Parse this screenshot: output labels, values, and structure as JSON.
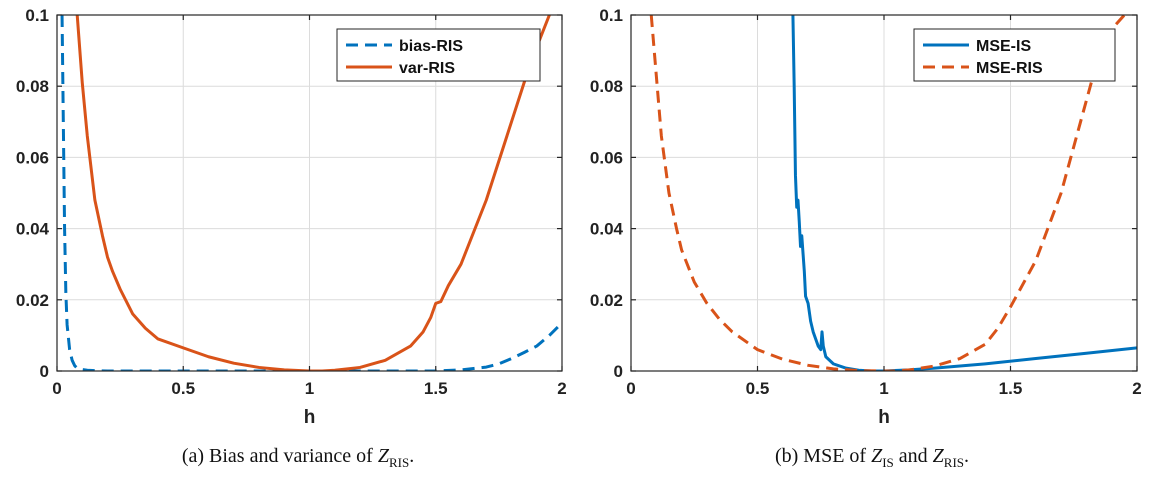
{
  "chart_data": [
    {
      "type": "line",
      "title": "",
      "xlabel": "h",
      "ylabel": "",
      "xlim": [
        0,
        2
      ],
      "ylim": [
        0,
        0.1
      ],
      "xticks": [
        0,
        0.5,
        1,
        1.5,
        2
      ],
      "yticks": [
        0,
        0.02,
        0.04,
        0.06,
        0.08,
        0.1
      ],
      "xtick_labels": [
        "0",
        "0.5",
        "1",
        "1.5",
        "2"
      ],
      "ytick_labels": [
        "0",
        "0.02",
        "0.04",
        "0.06",
        "0.08",
        "0.1"
      ],
      "grid": true,
      "legend_position": "top-right",
      "series": [
        {
          "name": "bias-RIS",
          "color": "#0072BD",
          "style": "dashed",
          "x": [
            0.02,
            0.025,
            0.03,
            0.035,
            0.04,
            0.05,
            0.06,
            0.07,
            0.08,
            0.1,
            0.12,
            0.15,
            0.2,
            0.3,
            0.5,
            0.8,
            1.0,
            1.2,
            1.5,
            1.6,
            1.7,
            1.75,
            1.8,
            1.85,
            1.9,
            1.95,
            2.0
          ],
          "y": [
            0.1,
            0.07,
            0.04,
            0.022,
            0.013,
            0.006,
            0.003,
            0.0015,
            0.0008,
            0.0004,
            0.0002,
            0.0001,
            0.0,
            0.0,
            0.0,
            0.0,
            0.0,
            0.0,
            0.0,
            0.0003,
            0.0011,
            0.002,
            0.0035,
            0.0052,
            0.007,
            0.01,
            0.0135
          ]
        },
        {
          "name": "var-RIS",
          "color": "#D95319",
          "style": "solid",
          "x": [
            0.08,
            0.1,
            0.12,
            0.15,
            0.18,
            0.2,
            0.22,
            0.25,
            0.3,
            0.35,
            0.4,
            0.5,
            0.6,
            0.7,
            0.8,
            0.9,
            1.0,
            1.05,
            1.1,
            1.2,
            1.3,
            1.4,
            1.45,
            1.48,
            1.5,
            1.52,
            1.55,
            1.6,
            1.7,
            1.8,
            1.85,
            1.9,
            1.95
          ],
          "y": [
            0.1,
            0.081,
            0.066,
            0.048,
            0.038,
            0.032,
            0.028,
            0.023,
            0.016,
            0.012,
            0.009,
            0.0065,
            0.004,
            0.0022,
            0.001,
            0.0003,
            0.0,
            0.0,
            0.0002,
            0.001,
            0.003,
            0.007,
            0.011,
            0.015,
            0.019,
            0.0195,
            0.024,
            0.03,
            0.048,
            0.07,
            0.081,
            0.091,
            0.1
          ]
        }
      ]
    },
    {
      "type": "line",
      "title": "",
      "xlabel": "h",
      "ylabel": "",
      "xlim": [
        0,
        2
      ],
      "ylim": [
        0,
        0.1
      ],
      "xticks": [
        0,
        0.5,
        1,
        1.5,
        2
      ],
      "yticks": [
        0,
        0.02,
        0.04,
        0.06,
        0.08,
        0.1
      ],
      "xtick_labels": [
        "0",
        "0.5",
        "1",
        "1.5",
        "2"
      ],
      "ytick_labels": [
        "0",
        "0.02",
        "0.04",
        "0.06",
        "0.08",
        "0.1"
      ],
      "grid": true,
      "legend_position": "top-right",
      "series": [
        {
          "name": "MSE-IS",
          "color": "#0072BD",
          "style": "solid",
          "x": [
            0.64,
            0.645,
            0.65,
            0.655,
            0.66,
            0.665,
            0.67,
            0.675,
            0.68,
            0.685,
            0.69,
            0.7,
            0.71,
            0.72,
            0.73,
            0.74,
            0.75,
            0.755,
            0.76,
            0.77,
            0.8,
            0.85,
            0.9,
            0.95,
            1.0,
            1.1,
            1.2,
            1.4,
            1.6,
            1.8,
            2.0
          ],
          "y": [
            0.1,
            0.08,
            0.055,
            0.046,
            0.048,
            0.042,
            0.035,
            0.038,
            0.033,
            0.028,
            0.021,
            0.019,
            0.014,
            0.011,
            0.009,
            0.007,
            0.006,
            0.011,
            0.007,
            0.004,
            0.002,
            0.0008,
            0.0002,
            0.0,
            0.0,
            0.0003,
            0.0008,
            0.002,
            0.0035,
            0.005,
            0.0065
          ]
        },
        {
          "name": "MSE-RIS",
          "color": "#D95319",
          "style": "dashed",
          "x": [
            0.08,
            0.1,
            0.12,
            0.15,
            0.18,
            0.2,
            0.25,
            0.3,
            0.35,
            0.4,
            0.5,
            0.6,
            0.7,
            0.8,
            0.9,
            1.0,
            1.05,
            1.1,
            1.2,
            1.3,
            1.4,
            1.45,
            1.5,
            1.6,
            1.7,
            1.8,
            1.85,
            1.9,
            1.95
          ],
          "y": [
            0.1,
            0.083,
            0.066,
            0.05,
            0.04,
            0.034,
            0.025,
            0.019,
            0.0145,
            0.011,
            0.006,
            0.0033,
            0.0016,
            0.0006,
            0.0001,
            0.0,
            0.0,
            0.0003,
            0.0014,
            0.0035,
            0.0075,
            0.012,
            0.018,
            0.031,
            0.05,
            0.076,
            0.089,
            0.096,
            0.1
          ]
        }
      ]
    }
  ],
  "captions": [
    {
      "prefix": "(a) Bias and variance of ",
      "symbol": "Z",
      "sub": "RIS",
      "suffix": "."
    },
    {
      "prefix": "(b) MSE of ",
      "symbol": "Z",
      "sub": "IS",
      "mid": " and ",
      "symbol2": "Z",
      "sub2": "RIS",
      "suffix": "."
    }
  ]
}
